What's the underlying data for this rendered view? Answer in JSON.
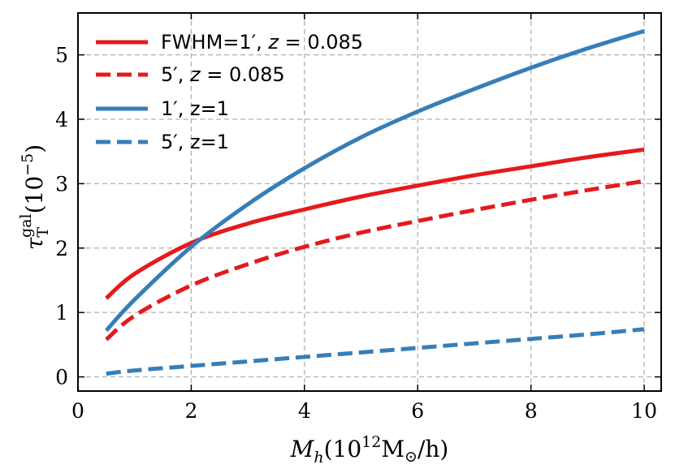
{
  "chart_data": {
    "type": "line",
    "xlabel": {
      "main": "M",
      "sub": "h",
      "rest_open": "(10",
      "sup": "12",
      "unit": "M",
      "unit_sub": "⊙",
      "rest_close": "/h)"
    },
    "ylabel": {
      "main": "τ",
      "sub": "T",
      "sup": "gal",
      "rest": "(10",
      "exp": "−5",
      "close": ")"
    },
    "xlim": [
      0,
      10.3
    ],
    "ylim": [
      -0.22,
      5.65
    ],
    "xticks": [
      0,
      2,
      4,
      6,
      8,
      10
    ],
    "xtick_labels": [
      "0",
      "2",
      "4",
      "6",
      "8",
      "10"
    ],
    "yticks": [
      0,
      1,
      2,
      3,
      4,
      5
    ],
    "ytick_labels": [
      "0",
      "1",
      "2",
      "3",
      "4",
      "5"
    ],
    "grid": true,
    "legend_position": "top-left",
    "x": [
      0.5,
      1,
      2,
      3,
      4,
      5,
      6,
      7,
      8,
      9,
      10
    ],
    "series": [
      {
        "name": "FWHM=1′, z = 0.085",
        "color": "#e41a1c",
        "dash": "solid",
        "y": [
          1.22,
          1.6,
          2.08,
          2.38,
          2.6,
          2.8,
          2.97,
          3.13,
          3.27,
          3.41,
          3.53
        ]
      },
      {
        "name": "5′, z = 0.085",
        "color": "#e41a1c",
        "dash": "dashed",
        "y": [
          0.58,
          0.95,
          1.42,
          1.75,
          2.02,
          2.24,
          2.42,
          2.59,
          2.75,
          2.9,
          3.04
        ]
      },
      {
        "name": "1′, z=1",
        "color": "#377eb8",
        "dash": "solid",
        "y": [
          0.72,
          1.2,
          2.02,
          2.68,
          3.24,
          3.72,
          4.12,
          4.47,
          4.8,
          5.1,
          5.37
        ]
      },
      {
        "name": "5′, z=1",
        "color": "#377eb8",
        "dash": "dashed",
        "y": [
          0.05,
          0.1,
          0.17,
          0.24,
          0.31,
          0.38,
          0.45,
          0.52,
          0.59,
          0.66,
          0.74
        ]
      }
    ],
    "legend": [
      {
        "parts": [
          "FWHM=1′, ",
          "z",
          " = 0.085"
        ]
      },
      {
        "parts": [
          "5′, ",
          "z",
          " = 0.085"
        ]
      },
      {
        "parts": [
          "1′, z=1",
          "",
          ""
        ]
      },
      {
        "parts": [
          "5′, z=1",
          "",
          ""
        ]
      }
    ]
  }
}
